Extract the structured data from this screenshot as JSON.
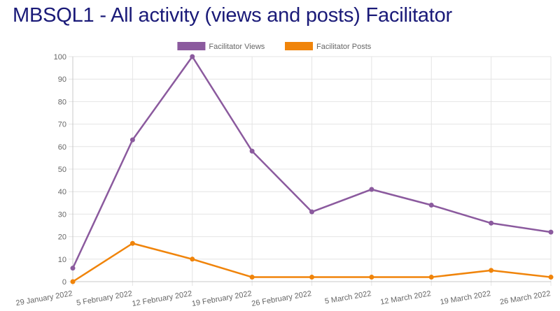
{
  "page": {
    "title": "MBSQL1 - All activity (views and posts) Facilitator"
  },
  "chart_data": {
    "type": "line",
    "x": [
      "29 January 2022",
      "5 February 2022",
      "12 February 2022",
      "19 February 2022",
      "26 February 2022",
      "5 March 2022",
      "12 March 2022",
      "19 March 2022",
      "26 March 2022"
    ],
    "series": [
      {
        "name": "Facilitator Views",
        "color": "#8b5a9e",
        "values": [
          6,
          63,
          100,
          58,
          31,
          41,
          34,
          26,
          22
        ]
      },
      {
        "name": "Facilitator Posts",
        "color": "#f0840a",
        "values": [
          0,
          17,
          10,
          2,
          2,
          2,
          2,
          5,
          2
        ]
      }
    ],
    "title": "MBSQL1 - All activity (views and posts) Facilitator",
    "xlabel": "",
    "ylabel": "",
    "ylim": [
      0,
      100
    ],
    "yticks": [
      0,
      10,
      20,
      30,
      40,
      50,
      60,
      70,
      80,
      90,
      100
    ],
    "grid": true,
    "legend": "top-center"
  }
}
